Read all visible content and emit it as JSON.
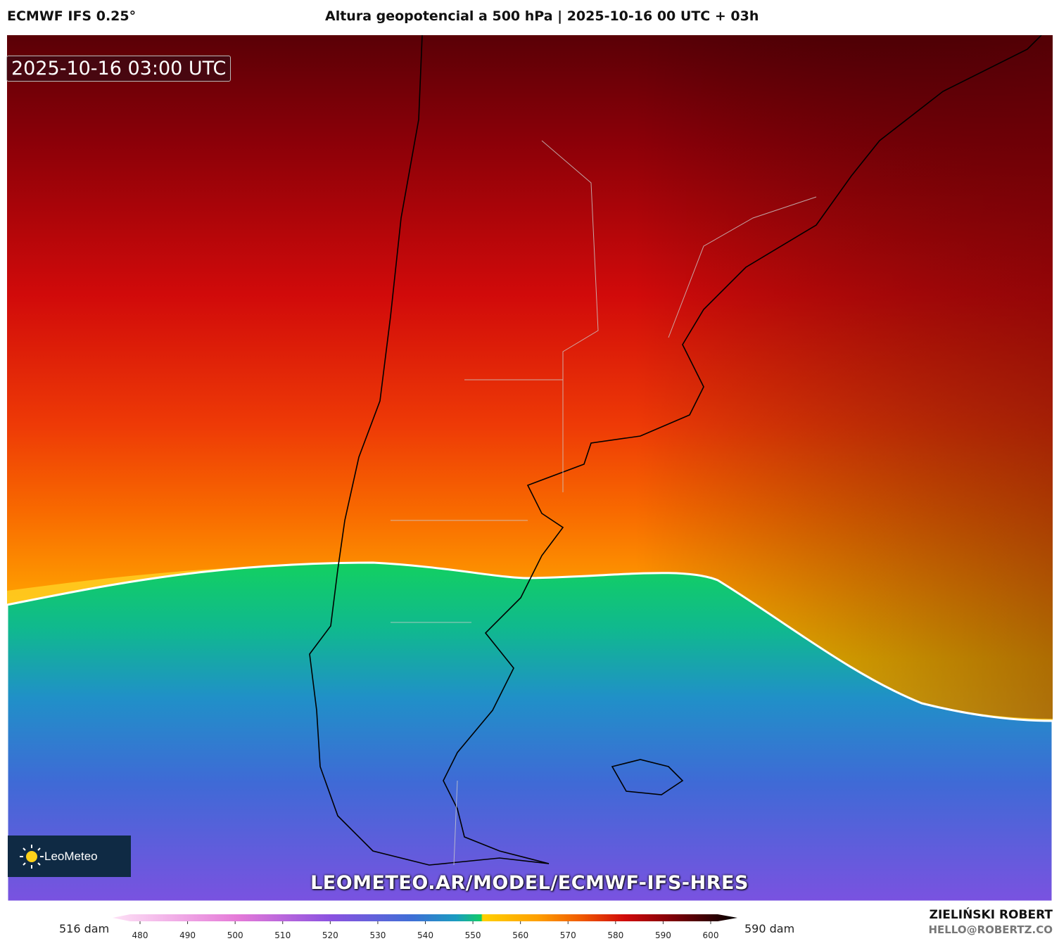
{
  "header": {
    "model": "ECMWF IFS 0.25°",
    "title": "Altura geopotencial a 500 hPa | 2025-10-16 00 UTC + 03h"
  },
  "map": {
    "valid_time": "2025-10-16 03:00 UTC",
    "logo": "LeoMeteo",
    "watermark": "LEOMETEO.AR/MODEL/ECMWF-IFS-HRES"
  },
  "colorbar": {
    "min_label": "516 dam",
    "max_label": "590 dam",
    "ticks": [
      480,
      490,
      500,
      510,
      520,
      530,
      540,
      550,
      560,
      570,
      580,
      590,
      600
    ]
  },
  "footer": {
    "author": "ZIELIŃSKI ROBERT",
    "contact": "HELLO@ROBERTZ.CO"
  }
}
